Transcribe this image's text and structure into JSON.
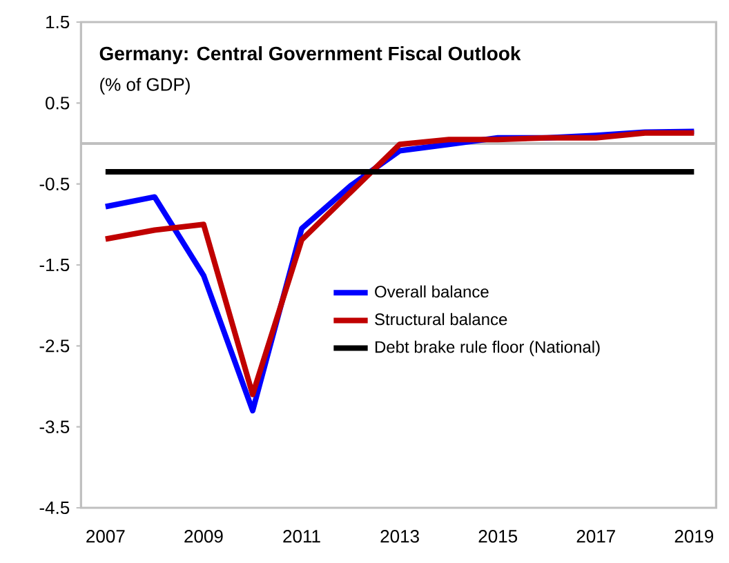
{
  "chart_data": {
    "type": "line",
    "title": "Germany: Central Government Fiscal Outlook",
    "subtitle": "(% of GDP)",
    "x": [
      2007,
      2008,
      2009,
      2010,
      2011,
      2012,
      2013,
      2014,
      2015,
      2016,
      2017,
      2018,
      2019
    ],
    "series": [
      {
        "name": "Overall balance",
        "color": "#0000ff",
        "values": [
          -0.78,
          -0.66,
          -1.63,
          -3.3,
          -1.05,
          -0.52,
          -0.09,
          -0.01,
          0.07,
          0.07,
          0.1,
          0.14,
          0.15
        ]
      },
      {
        "name": "Structural balance",
        "color": "#c00000",
        "values": [
          -1.18,
          -1.07,
          -1.0,
          -3.1,
          -1.19,
          -0.6,
          -0.01,
          0.05,
          0.05,
          0.07,
          0.07,
          0.13,
          0.13
        ]
      },
      {
        "name": "Debt brake rule floor (National)",
        "color": "#000000",
        "values": [
          -0.35,
          -0.35,
          -0.35,
          -0.35,
          -0.35,
          -0.35,
          -0.35,
          -0.35,
          -0.35,
          -0.35,
          -0.35,
          -0.35,
          -0.35
        ]
      }
    ],
    "ref_lines": [
      {
        "axis": "y",
        "value": 0,
        "color": "#bfbfbf"
      }
    ],
    "xlim": [
      2006.5,
      2019.45
    ],
    "ylim": [
      -4.5,
      1.5
    ],
    "xticks": [
      2007,
      2009,
      2011,
      2013,
      2015,
      2017,
      2019
    ],
    "yticks": [
      1.5,
      0.5,
      -0.5,
      -1.5,
      -2.5,
      -3.5,
      -4.5
    ],
    "grid": false,
    "legend": "right",
    "marker": "none",
    "line_style": "solid"
  }
}
